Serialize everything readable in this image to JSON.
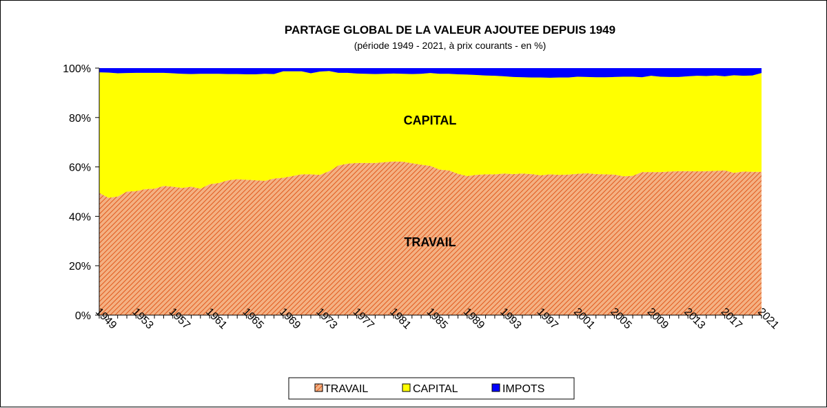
{
  "chart_data": {
    "type": "area",
    "stacked": true,
    "percent": true,
    "title": "PARTAGE GLOBAL DE LA VALEUR AJOUTEE DEPUIS 1949",
    "subtitle": "(période 1949 - 2021, à prix courants - en %)",
    "xlabel": "",
    "ylabel": "",
    "ylim": [
      0,
      100
    ],
    "y_ticks": [
      0,
      20,
      40,
      60,
      80,
      100
    ],
    "y_tick_labels": [
      "0%",
      "20%",
      "40%",
      "60%",
      "80%",
      "100%"
    ],
    "x_tick_labels": [
      "1949",
      "1953",
      "1957",
      "1961",
      "1965",
      "1969",
      "1973",
      "1977",
      "1981",
      "1985",
      "1989",
      "1993",
      "1997",
      "2001",
      "2005",
      "2009",
      "2013",
      "2017",
      "2021"
    ],
    "grid": false,
    "legend": "bottom",
    "area_labels": {
      "capital": "CAPITAL",
      "travail": "TRAVAIL"
    },
    "colors": {
      "travail_fill": "#f4b183",
      "travail_hatch": "#e0581c",
      "capital": "#ffff00",
      "impots": "#0000ff"
    },
    "x": [
      1949,
      1950,
      1951,
      1952,
      1953,
      1954,
      1955,
      1956,
      1957,
      1958,
      1959,
      1960,
      1961,
      1962,
      1963,
      1964,
      1965,
      1966,
      1967,
      1968,
      1969,
      1970,
      1971,
      1972,
      1973,
      1974,
      1975,
      1976,
      1977,
      1978,
      1979,
      1980,
      1981,
      1982,
      1983,
      1984,
      1985,
      1986,
      1987,
      1988,
      1989,
      1990,
      1991,
      1992,
      1993,
      1994,
      1995,
      1996,
      1997,
      1998,
      1999,
      2000,
      2001,
      2002,
      2003,
      2004,
      2005,
      2006,
      2007,
      2008,
      2009,
      2010,
      2011,
      2012,
      2013,
      2014,
      2015,
      2016,
      2017,
      2018,
      2019,
      2020,
      2021
    ],
    "series": [
      {
        "name": "TRAVAIL",
        "values": [
          49.5,
          47.5,
          48.0,
          50.0,
          50.2,
          51.0,
          51.2,
          52.3,
          52.0,
          51.5,
          52.0,
          51.2,
          53.0,
          53.5,
          54.6,
          55.0,
          54.8,
          54.6,
          54.4,
          55.3,
          55.6,
          56.3,
          57.0,
          57.0,
          56.8,
          58.3,
          60.6,
          61.3,
          61.6,
          61.6,
          61.6,
          61.9,
          62.2,
          62.1,
          61.5,
          60.9,
          60.4,
          58.9,
          58.6,
          57.2,
          56.3,
          56.8,
          57.0,
          57.0,
          57.3,
          57.1,
          57.3,
          57.1,
          56.6,
          57.0,
          56.8,
          56.9,
          57.2,
          57.4,
          57.1,
          57.0,
          56.9,
          56.2,
          56.4,
          57.9,
          57.9,
          57.9,
          58.1,
          58.3,
          58.3,
          58.2,
          58.3,
          58.4,
          58.6,
          57.6,
          58.1,
          58.0,
          58.0
        ]
      },
      {
        "name": "CAPITAL",
        "values": [
          48.8,
          50.7,
          49.9,
          48.0,
          47.9,
          47.1,
          46.9,
          45.8,
          45.9,
          46.2,
          45.6,
          46.5,
          44.7,
          44.2,
          43.0,
          42.6,
          42.7,
          42.9,
          43.3,
          42.3,
          43.1,
          42.4,
          41.7,
          40.9,
          41.8,
          40.5,
          37.5,
          36.8,
          36.2,
          36.1,
          36.0,
          35.8,
          35.6,
          35.6,
          36.1,
          36.8,
          37.6,
          38.8,
          39.1,
          40.3,
          41.1,
          40.4,
          40.0,
          39.9,
          39.4,
          39.3,
          39.0,
          39.1,
          39.6,
          39.1,
          39.4,
          39.3,
          39.3,
          39.0,
          39.2,
          39.3,
          39.5,
          40.3,
          40.1,
          38.4,
          39.0,
          38.6,
          38.3,
          38.1,
          38.4,
          38.7,
          38.5,
          38.6,
          38.1,
          39.5,
          38.8,
          39.0,
          40.0
        ]
      },
      {
        "name": "IMPOTS",
        "values": [
          1.7,
          1.8,
          2.1,
          2.0,
          1.9,
          1.9,
          1.9,
          1.9,
          2.1,
          2.3,
          2.4,
          2.3,
          2.3,
          2.3,
          2.4,
          2.4,
          2.5,
          2.5,
          2.3,
          2.4,
          1.3,
          1.3,
          1.3,
          2.1,
          1.4,
          1.2,
          1.9,
          1.9,
          2.2,
          2.3,
          2.4,
          2.3,
          2.2,
          2.3,
          2.4,
          2.3,
          2.0,
          2.3,
          2.3,
          2.5,
          2.6,
          2.8,
          3.0,
          3.1,
          3.3,
          3.6,
          3.7,
          3.8,
          3.8,
          3.9,
          3.8,
          3.8,
          3.5,
          3.6,
          3.7,
          3.7,
          3.6,
          3.5,
          3.5,
          3.7,
          3.1,
          3.5,
          3.6,
          3.6,
          3.3,
          3.1,
          3.2,
          3.0,
          3.3,
          2.9,
          3.1,
          3.0,
          2.0
        ]
      }
    ]
  }
}
